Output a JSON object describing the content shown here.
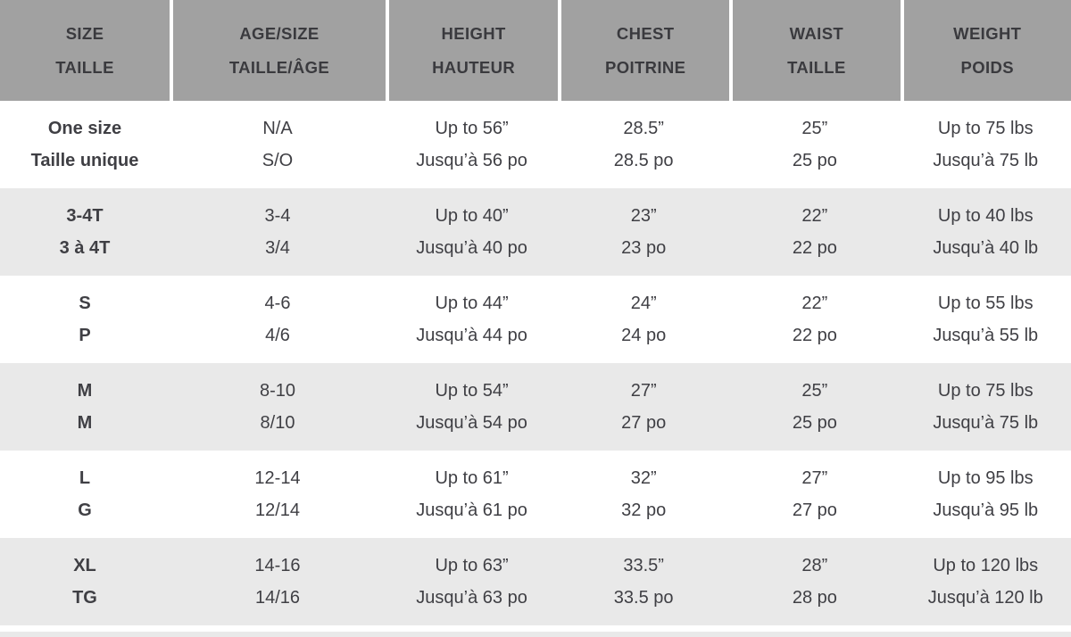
{
  "colors": {
    "header_bg": "#a1a1a1",
    "header_text": "#3a3a3e",
    "stripe": "#e9e9e9",
    "body_text": "#3f3f44",
    "separator": "#ffffff"
  },
  "table": {
    "columns": [
      {
        "en": "SIZE",
        "fr": "TAILLE"
      },
      {
        "en": "AGE/SIZE",
        "fr": "TAILLE/ÂGE"
      },
      {
        "en": "HEIGHT",
        "fr": "HAUTEUR"
      },
      {
        "en": "CHEST",
        "fr": "POITRINE"
      },
      {
        "en": "WAIST",
        "fr": "TAILLE"
      },
      {
        "en": "WEIGHT",
        "fr": "POIDS"
      }
    ],
    "rows": [
      {
        "size": {
          "en": "One size",
          "fr": "Taille unique"
        },
        "age_size": {
          "en": "N/A",
          "fr": "S/O"
        },
        "height": {
          "en": "Up to 56”",
          "fr": "Jusqu’à 56 po"
        },
        "chest": {
          "en": "28.5”",
          "fr": "28.5 po"
        },
        "waist": {
          "en": "25”",
          "fr": "25 po"
        },
        "weight": {
          "en": "Up to 75 lbs",
          "fr": "Jusqu’à 75 lb"
        }
      },
      {
        "size": {
          "en": "3-4T",
          "fr": "3 à 4T"
        },
        "age_size": {
          "en": "3-4",
          "fr": "3/4"
        },
        "height": {
          "en": "Up to 40”",
          "fr": "Jusqu’à 40 po"
        },
        "chest": {
          "en": "23”",
          "fr": "23 po"
        },
        "waist": {
          "en": "22”",
          "fr": "22 po"
        },
        "weight": {
          "en": "Up to 40 lbs",
          "fr": "Jusqu’à 40 lb"
        }
      },
      {
        "size": {
          "en": "S",
          "fr": "P"
        },
        "age_size": {
          "en": "4-6",
          "fr": "4/6"
        },
        "height": {
          "en": "Up to 44”",
          "fr": "Jusqu’à 44 po"
        },
        "chest": {
          "en": "24”",
          "fr": "24 po"
        },
        "waist": {
          "en": "22”",
          "fr": "22 po"
        },
        "weight": {
          "en": "Up to 55 lbs",
          "fr": "Jusqu’à 55 lb"
        }
      },
      {
        "size": {
          "en": "M",
          "fr": "M"
        },
        "age_size": {
          "en": "8-10",
          "fr": "8/10"
        },
        "height": {
          "en": "Up to 54”",
          "fr": "Jusqu’à 54 po"
        },
        "chest": {
          "en": "27”",
          "fr": "27 po"
        },
        "waist": {
          "en": "25”",
          "fr": "25 po"
        },
        "weight": {
          "en": "Up to 75 lbs",
          "fr": "Jusqu’à 75 lb"
        }
      },
      {
        "size": {
          "en": "L",
          "fr": "G"
        },
        "age_size": {
          "en": "12-14",
          "fr": "12/14"
        },
        "height": {
          "en": "Up to 61”",
          "fr": "Jusqu’à 61 po"
        },
        "chest": {
          "en": "32”",
          "fr": "32 po"
        },
        "waist": {
          "en": "27”",
          "fr": "27 po"
        },
        "weight": {
          "en": "Up to 95 lbs",
          "fr": "Jusqu’à 95 lb"
        }
      },
      {
        "size": {
          "en": "XL",
          "fr": "TG"
        },
        "age_size": {
          "en": "14-16",
          "fr": "14/16"
        },
        "height": {
          "en": "Up to 63”",
          "fr": "Jusqu’à 63 po"
        },
        "chest": {
          "en": "33.5”",
          "fr": "33.5 po"
        },
        "waist": {
          "en": "28”",
          "fr": "28 po"
        },
        "weight": {
          "en": "Up to 120 lbs",
          "fr": "Jusqu’à 120 lb"
        }
      }
    ]
  }
}
